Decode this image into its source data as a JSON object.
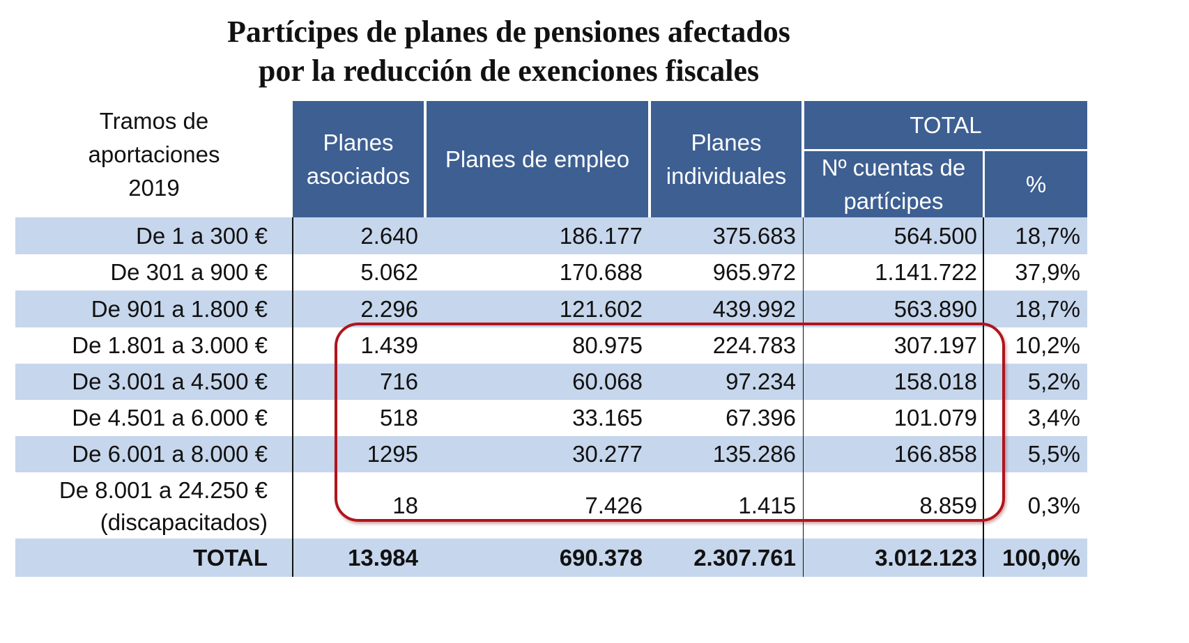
{
  "title_line1": "Partícipes de planes de pensiones afectados",
  "title_line2": "por la reducción de exenciones fiscales",
  "colors": {
    "header": "#3d5f92",
    "band": "#c6d6ec",
    "highlight": "#b0141c"
  },
  "chart_data": {
    "type": "table",
    "title": "Partícipes de planes de pensiones afectados por la reducción de exenciones fiscales",
    "header": {
      "row_label": [
        "Tramos de",
        "aportaciones",
        "2019"
      ],
      "asociados": [
        "Planes",
        "asociados"
      ],
      "empleo": "Planes de empleo",
      "individuales": [
        "Planes",
        "individuales"
      ],
      "total_group": "TOTAL",
      "cuentas": [
        "Nº cuentas de",
        "partícipes"
      ],
      "pct": "%"
    },
    "rows": [
      {
        "label": "De 1 a 300 €",
        "asociados": "2.640",
        "empleo": "186.177",
        "individuales": "375.683",
        "cuentas": "564.500",
        "pct": "18,7%"
      },
      {
        "label": "De 301 a 900 €",
        "asociados": "5.062",
        "empleo": "170.688",
        "individuales": "965.972",
        "cuentas": "1.141.722",
        "pct": "37,9%"
      },
      {
        "label": "De 901 a 1.800 €",
        "asociados": "2.296",
        "empleo": "121.602",
        "individuales": "439.992",
        "cuentas": "563.890",
        "pct": "18,7%"
      },
      {
        "label": "De 1.801 a 3.000 €",
        "asociados": "1.439",
        "empleo": "80.975",
        "individuales": "224.783",
        "cuentas": "307.197",
        "pct": "10,2%"
      },
      {
        "label": "De 3.001 a 4.500 €",
        "asociados": "716",
        "empleo": "60.068",
        "individuales": "97.234",
        "cuentas": "158.018",
        "pct": "5,2%"
      },
      {
        "label": "De 4.501 a 6.000 €",
        "asociados": "518",
        "empleo": "33.165",
        "individuales": "67.396",
        "cuentas": "101.079",
        "pct": "3,4%"
      },
      {
        "label": "De 6.001 a 8.000 €",
        "asociados": "1295",
        "empleo": "30.277",
        "individuales": "135.286",
        "cuentas": "166.858",
        "pct": "5,5%"
      },
      {
        "label": "De 8.001 a 24.250 €",
        "label2": "(discapacitados)",
        "asociados": "18",
        "empleo": "7.426",
        "individuales": "1.415",
        "cuentas": "8.859",
        "pct": "0,3%"
      }
    ],
    "total": {
      "label": "TOTAL",
      "asociados": "13.984",
      "empleo": "690.378",
      "individuales": "2.307.761",
      "cuentas": "3.012.123",
      "pct": "100,0%"
    },
    "highlighted_rows": [
      "De 1.801 a 3.000 €",
      "De 3.001 a 4.500 €",
      "De 4.501 a 6.000 €",
      "De 6.001 a 8.000 €",
      "De 8.001 a 24.250 €"
    ]
  }
}
